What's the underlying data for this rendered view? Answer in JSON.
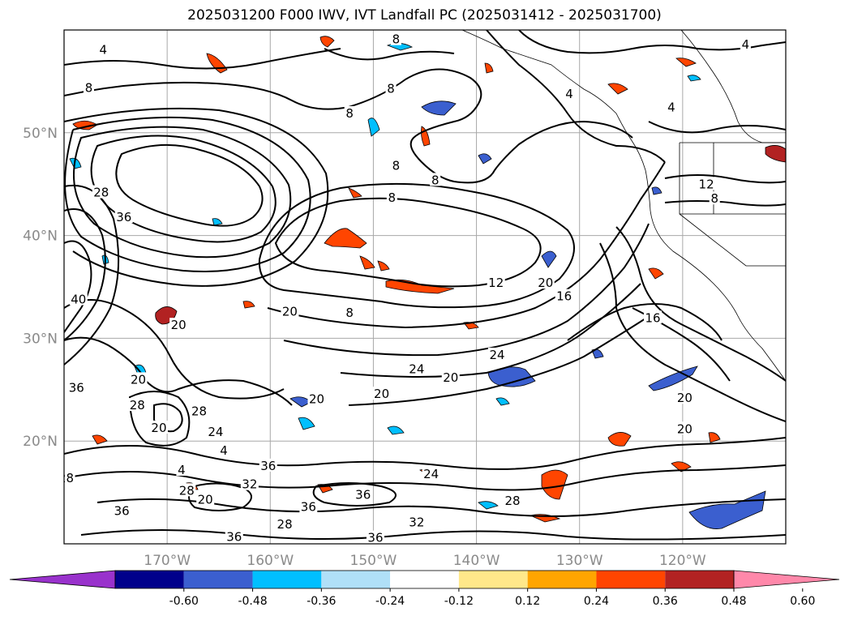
{
  "chart_data": {
    "type": "heatmap",
    "title": "2025031200 F000 IWV, IVT Landfall PC (2025031412 - 2025031700)",
    "map_extent": {
      "lon": [
        -180,
        -110
      ],
      "lat": [
        10,
        60
      ]
    },
    "longitude_ticks": [
      {
        "value": -170,
        "label": "170°W"
      },
      {
        "value": -160,
        "label": "160°W"
      },
      {
        "value": -150,
        "label": "150°W"
      },
      {
        "value": -140,
        "label": "140°W"
      },
      {
        "value": -130,
        "label": "130°W"
      },
      {
        "value": -120,
        "label": "120°W"
      }
    ],
    "latitude_ticks": [
      {
        "value": 20,
        "label": "20°N"
      },
      {
        "value": 30,
        "label": "30°N"
      },
      {
        "value": 40,
        "label": "40°N"
      },
      {
        "value": 50,
        "label": "50°N"
      }
    ],
    "grid": true,
    "colorbar": {
      "ticks": [
        "-0.60",
        "-0.48",
        "-0.36",
        "-0.24",
        "-0.12",
        "0.12",
        "0.24",
        "0.36",
        "0.48",
        "0.60"
      ],
      "colors": [
        "#9932cc",
        "#00008b",
        "#3b5fcf",
        "#00bfff",
        "#b0e0f8",
        "#ffffff",
        "#ffe88a",
        "#ffa500",
        "#ff4500",
        "#b22222",
        "#ff88aa"
      ],
      "extend": "both"
    },
    "iwv_contour_labels": [
      "4",
      "8",
      "12",
      "16",
      "20",
      "24",
      "28",
      "32",
      "36",
      "40"
    ],
    "iwv_labels_positions": [
      {
        "text": "8",
        "lon": -177.6,
        "lat": 54.3
      },
      {
        "text": "8",
        "lon": -147.8,
        "lat": 59.0
      },
      {
        "text": "8",
        "lon": -148.3,
        "lat": 54.2
      },
      {
        "text": "8",
        "lon": -152.3,
        "lat": 51.8
      },
      {
        "text": "8",
        "lon": -147.8,
        "lat": 46.7
      },
      {
        "text": "8",
        "lon": -144.0,
        "lat": 45.3
      },
      {
        "text": "8",
        "lon": -148.2,
        "lat": 43.6
      },
      {
        "text": "8",
        "lon": -152.3,
        "lat": 32.4
      },
      {
        "text": "8",
        "lon": -116.9,
        "lat": 43.5
      },
      {
        "text": "12",
        "lon": -117.7,
        "lat": 44.9
      },
      {
        "text": "12",
        "lon": -138.1,
        "lat": 35.3
      },
      {
        "text": "4",
        "lon": -176.2,
        "lat": 58.0
      },
      {
        "text": "4",
        "lon": -131.0,
        "lat": 53.7
      },
      {
        "text": "4",
        "lon": -121.1,
        "lat": 52.4
      },
      {
        "text": "4",
        "lon": -113.9,
        "lat": 58.5
      },
      {
        "text": "16",
        "lon": -131.5,
        "lat": 34.0
      },
      {
        "text": "16",
        "lon": -122.9,
        "lat": 31.9
      },
      {
        "text": "20",
        "lon": -133.3,
        "lat": 35.3
      },
      {
        "text": "20",
        "lon": -168.9,
        "lat": 31.2
      },
      {
        "text": "20",
        "lon": -172.8,
        "lat": 25.9
      },
      {
        "text": "20",
        "lon": -170.8,
        "lat": 21.2
      },
      {
        "text": "20",
        "lon": -158.1,
        "lat": 32.5
      },
      {
        "text": "20",
        "lon": -155.5,
        "lat": 24.0
      },
      {
        "text": "20",
        "lon": -149.2,
        "lat": 24.5
      },
      {
        "text": "20",
        "lon": -142.5,
        "lat": 26.1
      },
      {
        "text": "20",
        "lon": -119.8,
        "lat": 24.1
      },
      {
        "text": "20",
        "lon": -119.8,
        "lat": 21.1
      },
      {
        "text": "20",
        "lon": -166.3,
        "lat": 14.2
      },
      {
        "text": "24",
        "lon": -138.0,
        "lat": 28.3
      },
      {
        "text": "24",
        "lon": -145.8,
        "lat": 26.9
      },
      {
        "text": "24",
        "lon": -165.3,
        "lat": 20.8
      },
      {
        "text": "24",
        "lon": -144.4,
        "lat": 16.7
      },
      {
        "text": "28",
        "lon": -166.9,
        "lat": 22.8
      },
      {
        "text": "28",
        "lon": -172.9,
        "lat": 23.4
      },
      {
        "text": "28",
        "lon": -179.8,
        "lat": 16.3
      },
      {
        "text": "28",
        "lon": -136.5,
        "lat": 14.1
      },
      {
        "text": "28",
        "lon": -176.4,
        "lat": 44.1
      },
      {
        "text": "28",
        "lon": -168.1,
        "lat": 15.1
      },
      {
        "text": "32",
        "lon": -162.0,
        "lat": 15.7
      },
      {
        "text": "32",
        "lon": -145.8,
        "lat": 12.0
      },
      {
        "text": "36",
        "lon": -174.2,
        "lat": 41.7
      },
      {
        "text": "36",
        "lon": -174.4,
        "lat": 13.1
      },
      {
        "text": "36",
        "lon": -160.2,
        "lat": 17.5
      },
      {
        "text": "36",
        "lon": -151.0,
        "lat": 14.7
      },
      {
        "text": "36",
        "lon": -156.3,
        "lat": 13.5
      },
      {
        "text": "36",
        "lon": -163.5,
        "lat": 10.6
      },
      {
        "text": "36",
        "lon": -149.8,
        "lat": 10.5
      },
      {
        "text": "36",
        "lon": -178.8,
        "lat": 25.1
      },
      {
        "text": "40",
        "lon": -178.6,
        "lat": 33.7
      },
      {
        "text": "4",
        "lon": -164.5,
        "lat": 19.0
      },
      {
        "text": "4",
        "lon": -168.6,
        "lat": 17.1
      },
      {
        "text": "28",
        "lon": -158.6,
        "lat": 11.8
      }
    ]
  }
}
